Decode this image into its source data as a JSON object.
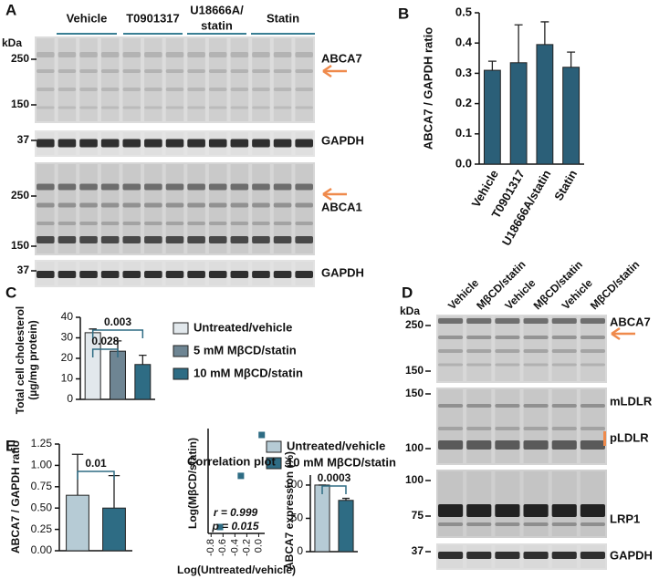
{
  "panel_letters": [
    "A",
    "B",
    "C",
    "D",
    "E"
  ],
  "blot_A": {
    "unit": "kDa",
    "groups": [
      [
        "Vehicle"
      ],
      [
        "T0901317"
      ],
      [
        "U18666A/",
        "statin"
      ],
      [
        "Statin"
      ]
    ],
    "strips": [
      {
        "labels": [
          "ABCA7"
        ],
        "markers": [
          "250",
          "150"
        ],
        "arrow": true
      },
      {
        "labels": [
          "GAPDH"
        ],
        "markers": [
          "37"
        ]
      },
      {
        "labels": [
          "ABCA1"
        ],
        "markers": [
          "250",
          "150"
        ],
        "arrow": true
      },
      {
        "labels": [
          "GAPDH"
        ],
        "markers": [
          "37"
        ]
      }
    ]
  },
  "blot_D": {
    "unit": "kDa",
    "lanes": [
      "Vehicle",
      "MβCD/statin",
      "Vehicle",
      "MβCD/statin",
      "Vehicle",
      "MβCD/statin"
    ],
    "strips": [
      {
        "labels": [
          "ABCA7"
        ],
        "markers": [
          "250",
          "150"
        ],
        "arrow": true
      },
      {
        "labels": [
          "mLDLR",
          "pLDLR"
        ],
        "markers": [
          "150",
          "100"
        ]
      },
      {
        "labels": [
          "LRP1"
        ],
        "markers": [
          "100",
          "75"
        ]
      },
      {
        "labels": [
          "GAPDH"
        ],
        "markers": [
          "37"
        ]
      }
    ]
  },
  "chart_data": [
    {
      "type": "bar",
      "ylabel": [
        "ABCA7 / GAPDH ratio"
      ],
      "categories": [
        "Vehicle",
        "T0901317",
        "U18666A/statin",
        "Statin"
      ],
      "values": [
        0.31,
        0.335,
        0.395,
        0.32
      ],
      "errors": [
        0.03,
        0.125,
        0.075,
        0.05
      ],
      "color": "#2b5f78",
      "ylim": [
        0,
        0.5
      ],
      "yticks": [
        {
          "value": 0,
          "label": "0.0"
        },
        0.1,
        0.2,
        0.3,
        0.4,
        0.5
      ]
    },
    {
      "type": "bar",
      "ylabel": [
        "Total cell cholesterol",
        "(µg/mg protein)"
      ],
      "series": [
        {
          "name": "Untreated/vehicle",
          "color": "#e2e8ec",
          "values": [
            32.5
          ],
          "errors": [
            1.8
          ]
        },
        {
          "name": "5 mM MβCD/statin",
          "color": "#6e8593",
          "values": [
            23.5
          ],
          "errors": [
            5
          ]
        },
        {
          "name": "10 mM MβCD/statin",
          "color": "#2e6c84",
          "values": [
            17
          ],
          "errors": [
            4.5
          ]
        }
      ],
      "brackets": [
        {
          "label": "0.028",
          "between": [
            0,
            1
          ]
        },
        {
          "label": "0.003",
          "between": [
            0,
            2
          ]
        }
      ],
      "ylim": [
        0,
        40
      ],
      "yticks": [
        0,
        10,
        20,
        30,
        40
      ]
    },
    {
      "type": "bar",
      "ylabel": [
        "ABCA7 / GAPDH ratio"
      ],
      "series": [
        {
          "name": "Untreated/vehicle",
          "color": "#b6cbd5",
          "values": [
            0.65
          ],
          "errors": [
            0.48
          ]
        },
        {
          "name": "10 mM MβCD/statin",
          "color": "#2e6c84",
          "values": [
            0.5
          ],
          "errors": [
            0.38
          ]
        }
      ],
      "brackets": [
        {
          "label": "0.01",
          "between": [
            0,
            1
          ]
        }
      ],
      "ylim": [
        0,
        1.25
      ],
      "yticks": [
        {
          "value": 0,
          "label": "0.00"
        },
        0.25,
        {
          "value": 0.5,
          "label": "0.50"
        },
        0.75,
        {
          "value": 1,
          "label": "1.00"
        },
        1.25
      ]
    },
    {
      "type": "scatter",
      "title": "Correlation plot",
      "xlabel": "Log(Untreated/vehicle)",
      "ylabel": [
        "Log(MβCD/statin)"
      ],
      "x": [
        -0.65,
        -0.3,
        0.05
      ],
      "values": [
        -0.75,
        -0.35,
        -0.03
      ],
      "color": "#2e6c84",
      "annotations": [
        "r = 0.999",
        "p = 0.015"
      ],
      "xlim": [
        -0.85,
        0.1
      ],
      "xticks": [
        -0.8,
        -0.6,
        -0.4,
        -0.2,
        {
          "value": 0,
          "label": "0.0"
        }
      ],
      "ylim": [
        -0.8,
        0.02
      ]
    },
    {
      "type": "bar",
      "ylabel": [
        "ABCA7 expression (%)"
      ],
      "series": [
        {
          "color": "#b6cbd5",
          "values": [
            100
          ],
          "errors": [
            0
          ]
        },
        {
          "color": "#2e6c84",
          "values": [
            77
          ],
          "errors": [
            3
          ]
        }
      ],
      "brackets": [
        {
          "label": "0.0003",
          "between": [
            0,
            1
          ]
        }
      ],
      "ylim": [
        0,
        115
      ],
      "yticks": [
        0,
        50,
        100
      ]
    }
  ]
}
